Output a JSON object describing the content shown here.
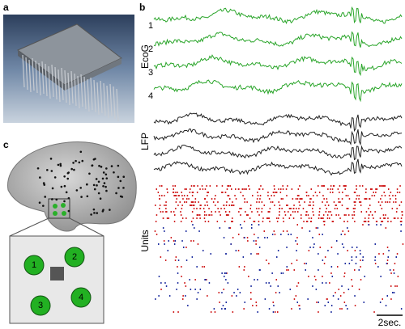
{
  "panels": {
    "a": {
      "label": "a"
    },
    "b": {
      "label": "b",
      "ecog_label": "EcoG",
      "channels": [
        "1",
        "2",
        "3",
        "4"
      ],
      "lfp_label": "LFP",
      "units_label": "Units",
      "scale_bar": "2sec."
    },
    "c": {
      "label": "c",
      "electrodes": [
        "1",
        "2",
        "3",
        "4"
      ]
    }
  }
}
